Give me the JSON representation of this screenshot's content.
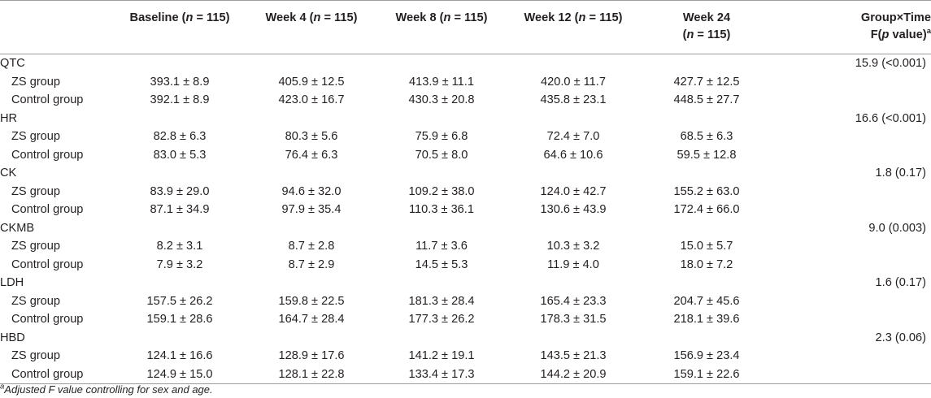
{
  "header": {
    "baseline": {
      "label": "Baseline (",
      "n_var": "n",
      "n_rest": " = 115)"
    },
    "week4": {
      "label": "Week 4 (",
      "n_var": "n",
      "n_rest": " = 115)"
    },
    "week8": {
      "label": "Week 8 (",
      "n_var": "n",
      "n_rest": " = 115)"
    },
    "week12": {
      "label": "Week 12 (",
      "n_var": "n",
      "n_rest": " = 115)"
    },
    "week24": {
      "line1": "Week 24",
      "line2_open": "(",
      "n_var": "n",
      "line2_rest": " = 115)"
    },
    "interaction": {
      "line1": "Group×Time",
      "line2_a": "F(",
      "p_var": "p",
      "line2_b": " value)",
      "sup": "a"
    }
  },
  "groups": [
    {
      "name": "QTC",
      "f_value": "15.9 (<0.001)",
      "rows": [
        {
          "label": "ZS group",
          "values": [
            "393.1 ± 8.9",
            "405.9 ± 12.5",
            "413.9 ± 11.1",
            "420.0 ± 11.7",
            "427.7 ± 12.5"
          ]
        },
        {
          "label": "Control group",
          "values": [
            "392.1 ± 8.9",
            "423.0 ± 16.7",
            "430.3 ± 20.8",
            "435.8 ± 23.1",
            "448.5 ± 27.7"
          ]
        }
      ]
    },
    {
      "name": "HR",
      "f_value": "16.6 (<0.001)",
      "rows": [
        {
          "label": "ZS group",
          "values": [
            "82.8 ± 6.3",
            "80.3 ± 5.6",
            "75.9 ± 6.8",
            "72.4 ± 7.0",
            "68.5 ± 6.3"
          ]
        },
        {
          "label": "Control group",
          "values": [
            "83.0 ± 5.3",
            "76.4 ± 6.3",
            "70.5 ± 8.0",
            "64.6 ± 10.6",
            "59.5 ± 12.8"
          ]
        }
      ]
    },
    {
      "name": "CK",
      "f_value": "1.8 (0.17)",
      "rows": [
        {
          "label": "ZS group",
          "values": [
            "83.9 ± 29.0",
            "94.6 ± 32.0",
            "109.2 ± 38.0",
            "124.0 ± 42.7",
            "155.2 ± 63.0"
          ]
        },
        {
          "label": "Control group",
          "values": [
            "87.1 ± 34.9",
            "97.9 ± 35.4",
            "110.3 ± 36.1",
            "130.6 ± 43.9",
            "172.4 ± 66.0"
          ]
        }
      ]
    },
    {
      "name": "CKMB",
      "f_value": "9.0 (0.003)",
      "rows": [
        {
          "label": "ZS group",
          "values": [
            "8.2 ± 3.1",
            "8.7 ± 2.8",
            "11.7 ± 3.6",
            "10.3 ± 3.2",
            "15.0 ± 5.7"
          ]
        },
        {
          "label": "Control group",
          "values": [
            "7.9 ± 3.2",
            "8.7 ± 2.9",
            "14.5 ± 5.3",
            "11.9 ± 4.0",
            "18.0 ± 7.2"
          ]
        }
      ]
    },
    {
      "name": "LDH",
      "f_value": "1.6 (0.17)",
      "rows": [
        {
          "label": "ZS group",
          "values": [
            "157.5 ± 26.2",
            "159.8 ± 22.5",
            "181.3 ± 28.4",
            "165.4 ± 23.3",
            "204.7 ± 45.6"
          ]
        },
        {
          "label": "Control group",
          "values": [
            "159.1 ± 28.6",
            "164.7 ± 28.4",
            "177.3 ± 26.2",
            "178.3 ± 31.5",
            "218.1 ± 39.6"
          ]
        }
      ]
    },
    {
      "name": "HBD",
      "f_value": "2.3 (0.06)",
      "rows": [
        {
          "label": "ZS group",
          "values": [
            "124.1 ± 16.6",
            "128.9 ± 17.6",
            "141.2 ± 19.1",
            "143.5 ± 21.3",
            "156.9 ± 23.4"
          ]
        },
        {
          "label": "Control group",
          "values": [
            "124.9 ± 15.0",
            "128.1 ± 22.8",
            "133.4 ± 17.3",
            "144.2 ± 20.9",
            "159.1 ± 22.6"
          ]
        }
      ]
    }
  ],
  "footnote": {
    "sup": "a",
    "part1": "Adjusted ",
    "f_letter": "F",
    "part2": " value controlling for sex and age."
  }
}
